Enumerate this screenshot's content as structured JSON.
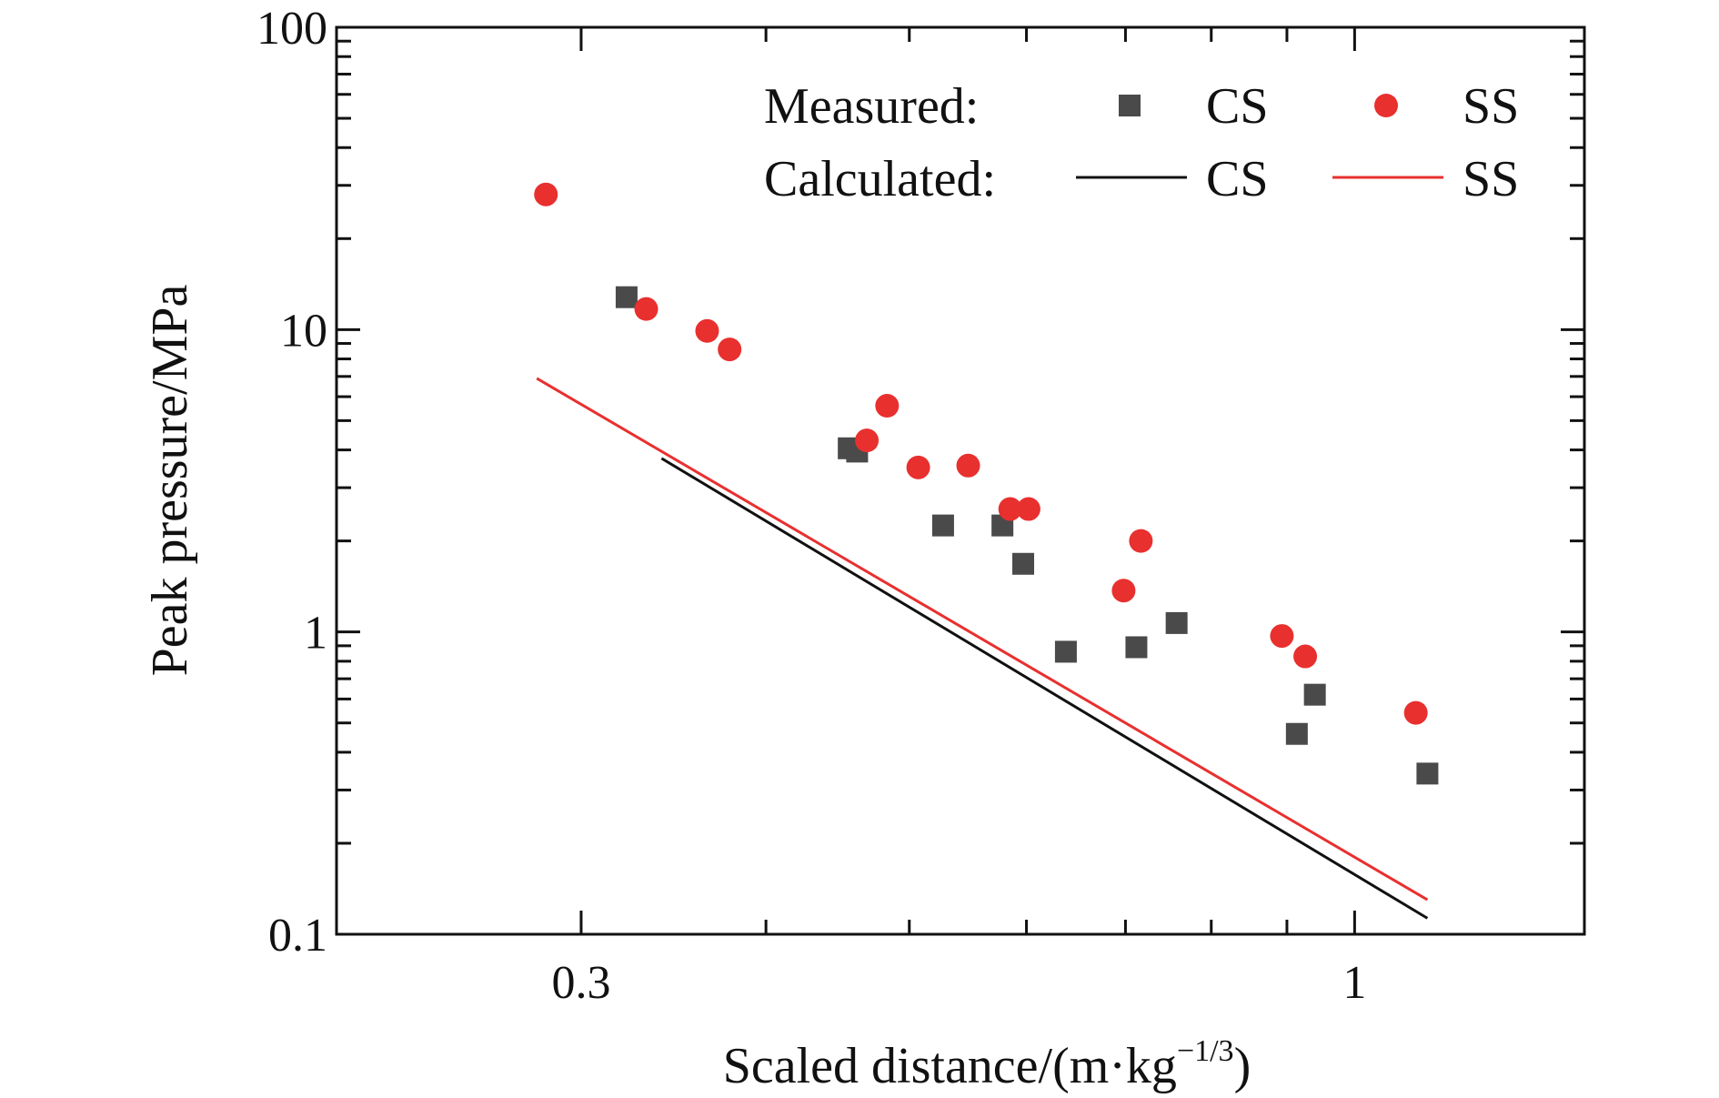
{
  "chart_data": {
    "type": "scatter",
    "xlabel": "Scaled distance/(m·kg",
    "xlabel_sup": "−1/3",
    "xlabel_tail": ")",
    "ylabel": "Peak pressure/MPa",
    "x_scale": "log",
    "y_scale": "log",
    "xlim": [
      0.205,
      1.43
    ],
    "ylim": [
      0.1,
      100
    ],
    "x_ticks": [
      {
        "value": 0.3,
        "label": "0.3"
      },
      {
        "value": 1,
        "label": "1"
      }
    ],
    "y_ticks": [
      {
        "value": 0.1,
        "label": "0.1"
      },
      {
        "value": 1,
        "label": "1"
      },
      {
        "value": 10,
        "label": "10"
      },
      {
        "value": 100,
        "label": "100"
      }
    ],
    "grid": false,
    "legend": {
      "placement": "top-right",
      "measured_label": "Measured:",
      "calculated_label": "Calculated:"
    },
    "series": [
      {
        "name": "CS",
        "kind": "measured",
        "marker": "square",
        "color": "#4a4a4a",
        "points": [
          [
            0.322,
            12.8
          ],
          [
            0.455,
            4.05
          ],
          [
            0.461,
            3.95
          ],
          [
            0.527,
            2.25
          ],
          [
            0.578,
            2.25
          ],
          [
            0.597,
            1.68
          ],
          [
            0.638,
            0.86
          ],
          [
            0.712,
            0.89
          ],
          [
            0.758,
            1.07
          ],
          [
            0.914,
            0.46
          ],
          [
            0.94,
            0.62
          ],
          [
            1.12,
            0.34
          ]
        ]
      },
      {
        "name": "SS",
        "kind": "measured",
        "marker": "circle",
        "color": "#e8302f",
        "points": [
          [
            0.284,
            28
          ],
          [
            0.332,
            11.7
          ],
          [
            0.365,
            9.9
          ],
          [
            0.378,
            8.6
          ],
          [
            0.468,
            4.3
          ],
          [
            0.483,
            5.6
          ],
          [
            0.507,
            3.5
          ],
          [
            0.548,
            3.55
          ],
          [
            0.585,
            2.55
          ],
          [
            0.602,
            2.55
          ],
          [
            0.698,
            1.37
          ],
          [
            0.717,
            2.0
          ],
          [
            0.893,
            0.97
          ],
          [
            0.926,
            0.83
          ],
          [
            1.1,
            0.54
          ]
        ]
      },
      {
        "name": "CS",
        "kind": "calculated",
        "marker": "line",
        "color": "#111111",
        "points": [
          [
            0.34,
            3.75
          ],
          [
            1.12,
            0.113
          ]
        ]
      },
      {
        "name": "SS",
        "kind": "calculated",
        "marker": "line",
        "color": "#e8302f",
        "points": [
          [
            0.28,
            6.9
          ],
          [
            1.12,
            0.13
          ]
        ]
      }
    ]
  }
}
